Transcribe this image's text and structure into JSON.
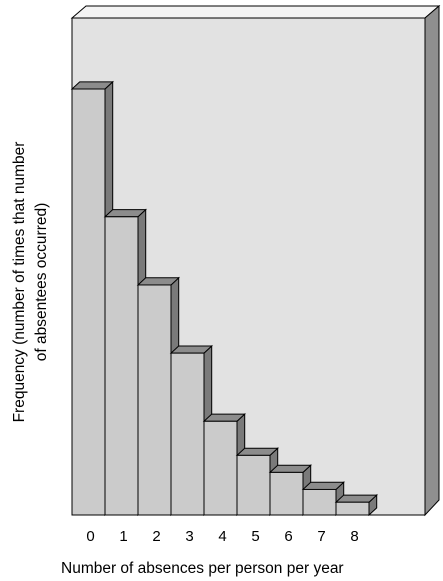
{
  "chart_data": {
    "type": "bar",
    "style": "3d-histogram",
    "title": "",
    "xlabel": "Number of absences per person per year",
    "ylabel_lines": [
      "Frequency (number of times that number",
      "of absentees occurred)"
    ],
    "categories": [
      "0",
      "1",
      "2",
      "3",
      "4",
      "5",
      "6",
      "7",
      "8"
    ],
    "values": [
      100,
      70,
      54,
      38,
      22,
      14,
      10,
      6,
      3
    ],
    "ylim": [
      0,
      100
    ],
    "y_ticks_shown": false,
    "grid": false,
    "legend": "none",
    "colors": {
      "bar_front": "#cbcbcb",
      "bar_top": "#8c8c8c",
      "bar_side": "#7a7a7a",
      "wall": "#e2e2e2",
      "wall_side": "#8f8f8f",
      "wall_top": "#f4f4f4",
      "outline": "#000000"
    }
  }
}
